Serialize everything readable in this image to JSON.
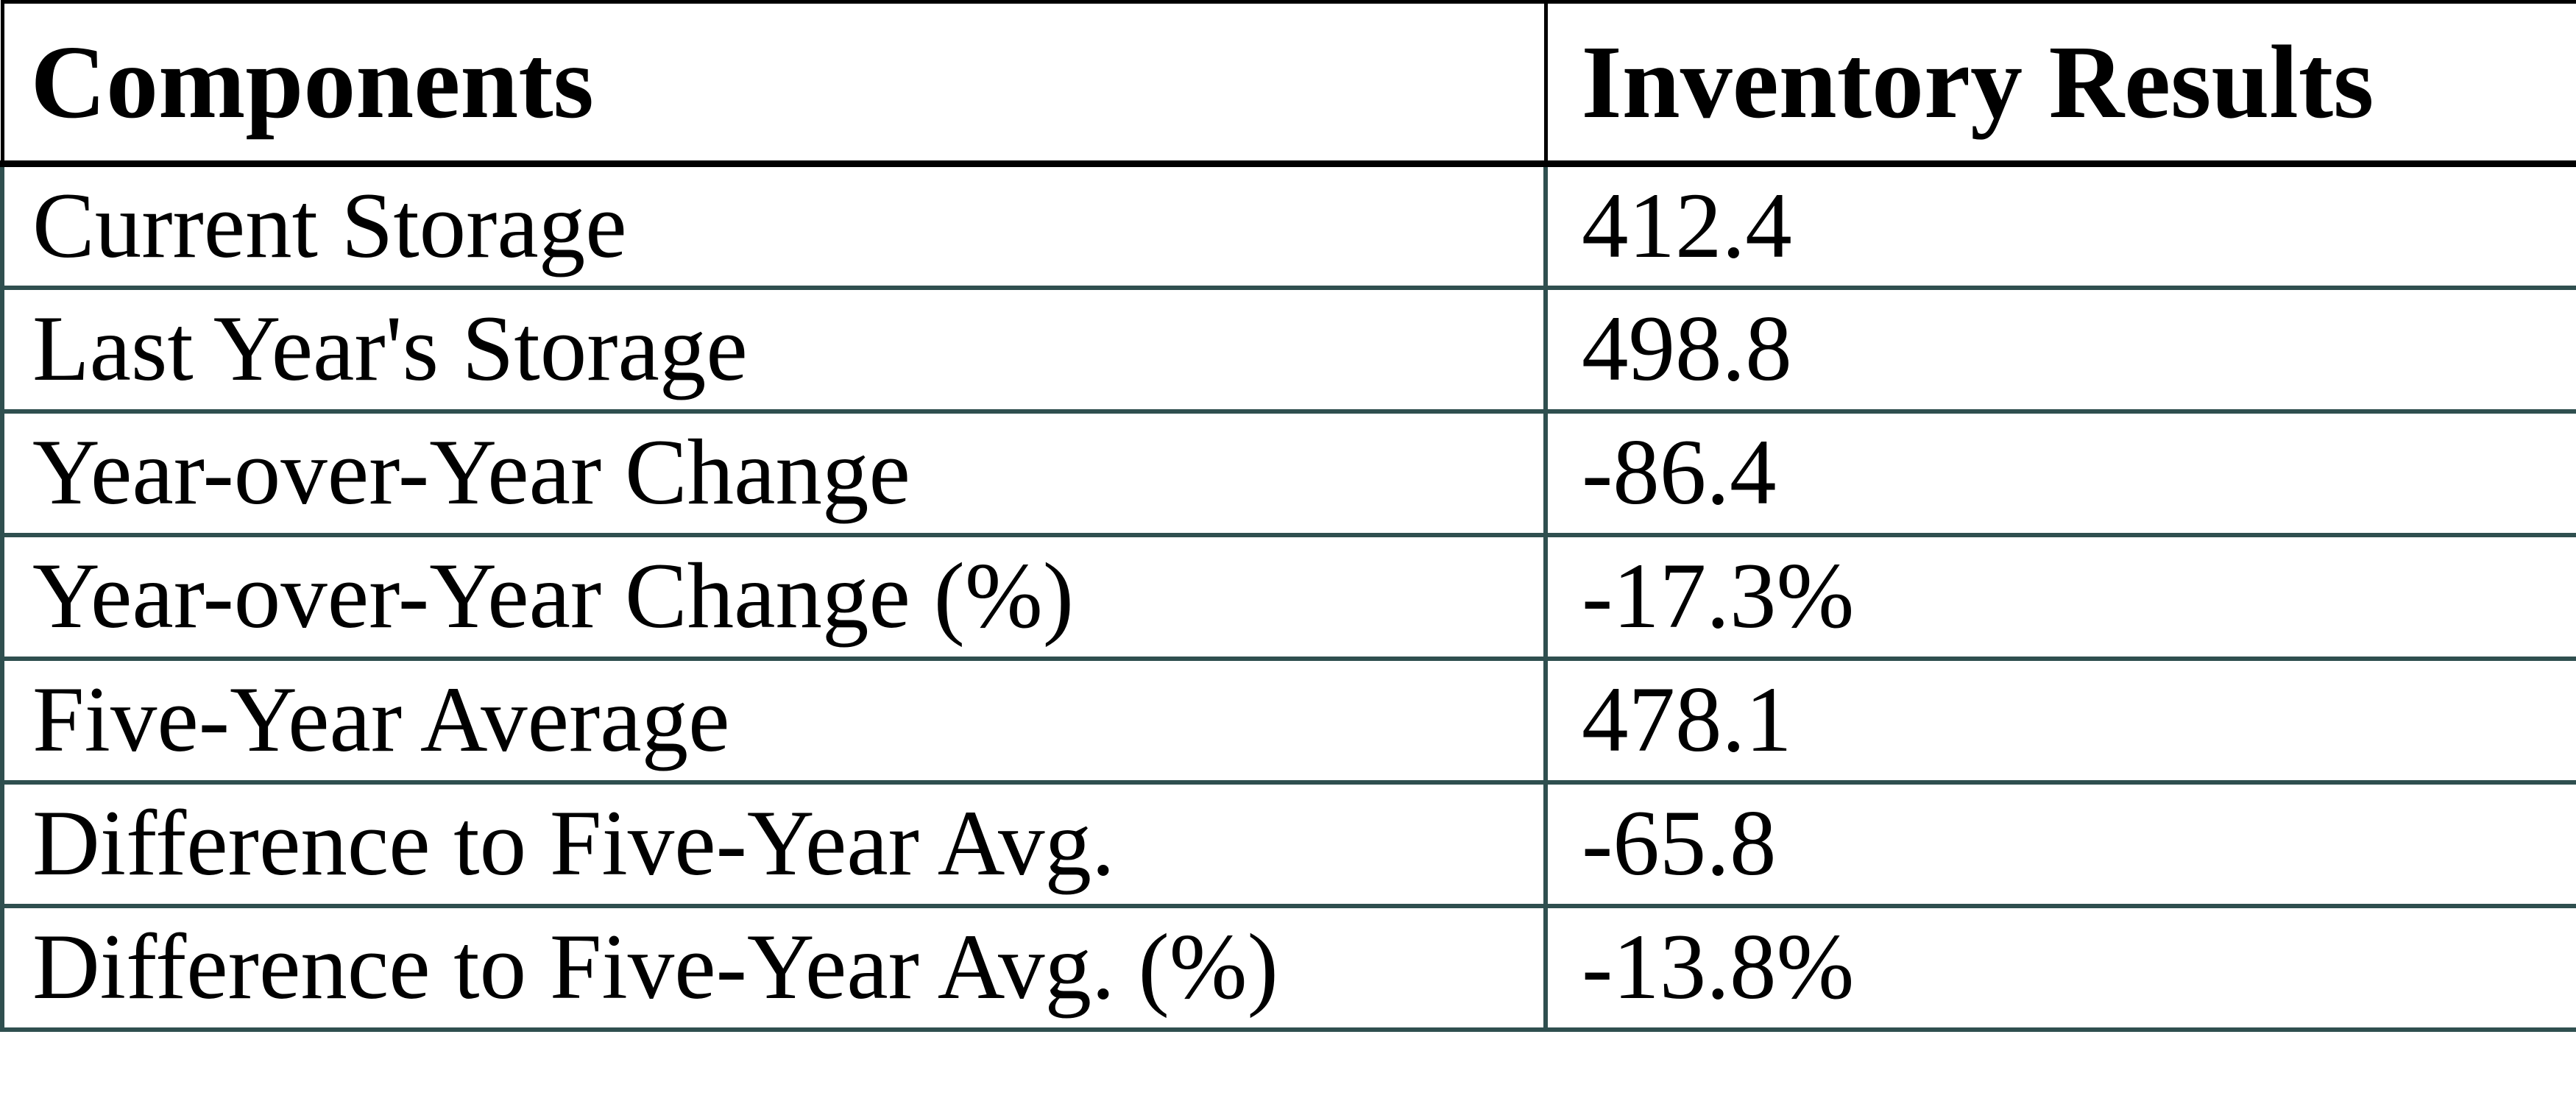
{
  "page": {
    "background": "#ffffff"
  },
  "colors": {
    "header_border": "#000000",
    "body_border": "#2f4f4f",
    "text": "#000000"
  },
  "table": {
    "columns": [
      {
        "label": "Components"
      },
      {
        "label": "Inventory Results"
      }
    ],
    "rows": [
      {
        "label": "Current Storage",
        "value": "412.4"
      },
      {
        "label": "Last Year's Storage",
        "value": "498.8"
      },
      {
        "label": "Year-over-Year Change",
        "value": "-86.4"
      },
      {
        "label": "Year-over-Year Change (%)",
        "value": "-17.3%"
      },
      {
        "label": "Five-Year Average",
        "value": "478.1"
      },
      {
        "label": "Difference to Five-Year Avg.",
        "value": "-65.8"
      },
      {
        "label": "Difference to Five-Year Avg. (%)",
        "value": "-13.8%"
      }
    ]
  },
  "chart_data": {
    "type": "table",
    "columns": [
      "Components",
      "Inventory Results"
    ],
    "rows": [
      [
        "Current Storage",
        412.4
      ],
      [
        "Last Year's Storage",
        498.8
      ],
      [
        "Year-over-Year Change",
        -86.4
      ],
      [
        "Year-over-Year Change (%)",
        "-17.3%"
      ],
      [
        "Five-Year Average",
        478.1
      ],
      [
        "Difference to Five-Year Avg.",
        -65.8
      ],
      [
        "Difference to Five-Year Avg. (%)",
        "-13.8%"
      ]
    ]
  }
}
